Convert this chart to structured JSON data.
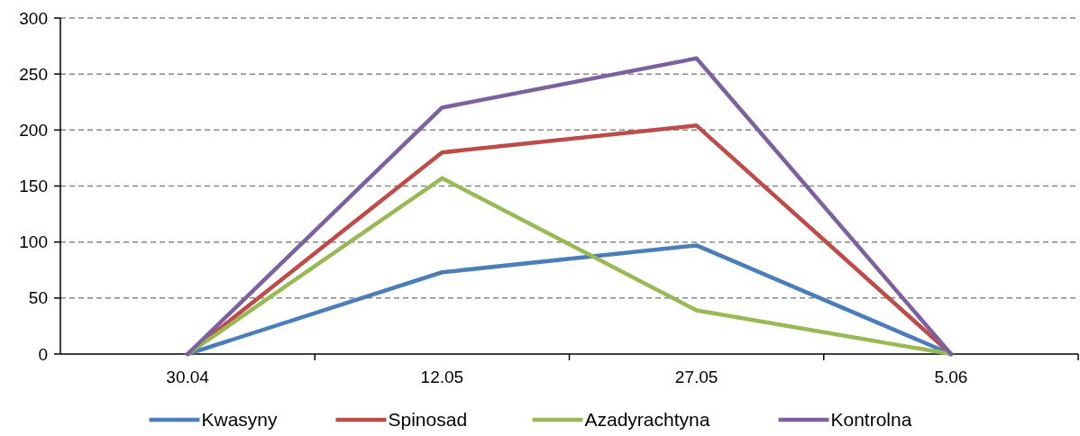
{
  "chart_data": {
    "type": "line",
    "categories": [
      "30.04",
      "12.05",
      "27.05",
      "5.06"
    ],
    "series": [
      {
        "name": "Kwasyny",
        "color": "#4a7ebb",
        "values": [
          0,
          73,
          97,
          0
        ]
      },
      {
        "name": "Spinosad",
        "color": "#be4b48",
        "values": [
          0,
          180,
          204,
          0
        ]
      },
      {
        "name": "Azadyrachtyna",
        "color": "#98b954",
        "values": [
          0,
          157,
          39,
          0
        ]
      },
      {
        "name": "Kontrolna",
        "color": "#7d60a0",
        "values": [
          0,
          220,
          264,
          0
        ]
      }
    ],
    "ylim": [
      0,
      300
    ],
    "yticks": [
      0,
      50,
      100,
      150,
      200,
      250,
      300
    ],
    "grid": "y",
    "legend": "bottom",
    "marker": "none",
    "line_style": "solid"
  }
}
